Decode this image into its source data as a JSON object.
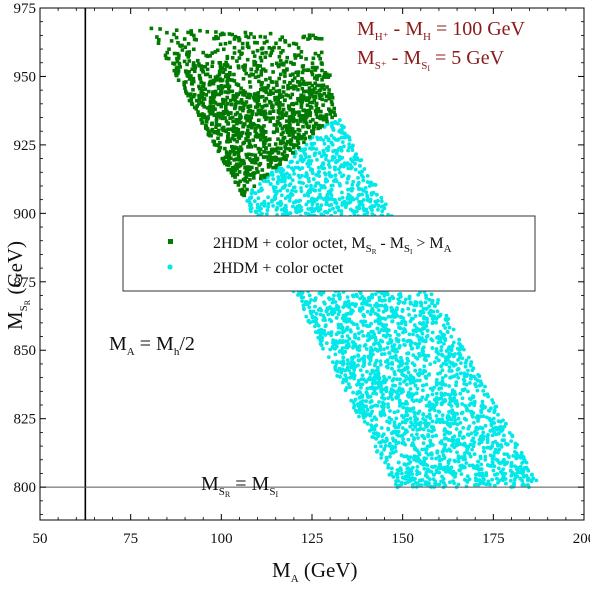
{
  "chart_data": {
    "type": "scatter",
    "xlabel": {
      "main": "M",
      "sub": "A",
      "unit": " (GeV)"
    },
    "ylabel": {
      "main": "M",
      "sub": "S",
      "subsub": "R",
      "unit": " (GeV)"
    },
    "xlim": [
      50,
      200
    ],
    "ylim": [
      788,
      975
    ],
    "x_ticks": [
      "50",
      "75",
      "100",
      "125",
      "150",
      "175",
      "200"
    ],
    "x_tick_values": [
      50,
      75,
      100,
      125,
      150,
      175,
      200
    ],
    "y_ticks": [
      "800",
      "825",
      "850",
      "875",
      "900",
      "925",
      "950",
      "975"
    ],
    "y_tick_values": [
      800,
      825,
      850,
      875,
      900,
      925,
      950,
      975
    ],
    "grid": false,
    "legend_placement": "center-left",
    "series": [
      {
        "name": "2HDM + color octet, M_SR - M_SI > M_A",
        "color": "#007a00",
        "marker": "square",
        "region": {
          "polygon": [
            [
              80,
              968
            ],
            [
              128,
              965
            ],
            [
              132,
              936
            ],
            [
              106,
              906
            ],
            [
              82,
              963
            ]
          ]
        }
      },
      {
        "name": "2HDM + color octet",
        "color": "#00e8e8",
        "marker": "circle",
        "region": {
          "polygon": [
            [
              106,
              906
            ],
            [
              132,
              936
            ],
            [
              188,
              800
            ],
            [
              148,
              800
            ]
          ]
        }
      }
    ],
    "vertical_line": {
      "x": 62.5,
      "label": "M_A = M_h/2"
    },
    "horizontal_line": {
      "y": 800,
      "label": "M_SR = M_SI"
    },
    "annotations": {
      "mass_diff_1": {
        "lhs": "M",
        "lhs_sup": "H⁺",
        "mid": " - M",
        "mid_sub": "H",
        "rhs": " = 100 GeV"
      },
      "mass_diff_2": {
        "lhs": "M",
        "lhs_sub": "S⁺",
        "mid": " - M",
        "mid_sub": "S",
        "mid_subsub": "I",
        "rhs": " = 5 GeV"
      },
      "vline_label": {
        "lhs": "M",
        "lhs_sub": "A",
        "mid": " = M",
        "mid_sub": "h",
        "rhs": "/2"
      },
      "hline_label": {
        "lhs": "M",
        "lhs_sub": "S",
        "lhs_subsub": "R",
        "mid": " = M",
        "mid_sub": "S",
        "mid_subsub": "I"
      }
    },
    "legend": {
      "green": {
        "a": "2HDM + color octet, M",
        "b": "S",
        "c": "R",
        "d": " - M",
        "e": "S",
        "f": "I",
        "g": " > M",
        "h": "A"
      },
      "cyan": "2HDM + color octet"
    }
  }
}
